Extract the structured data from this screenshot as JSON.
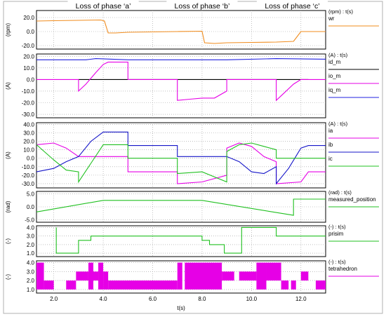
{
  "chart_data": [
    {
      "type": "line",
      "ylabel": "(rpm)",
      "unit_label": "(rpm) : t(s)",
      "ylim": [
        -25,
        30
      ],
      "yticks": [
        20.0,
        0.0,
        -20.0
      ],
      "series": [
        {
          "name": "wr",
          "color": "#f08c1e",
          "points": [
            [
              1.3,
              15
            ],
            [
              2.0,
              15.5
            ],
            [
              3.0,
              16
            ],
            [
              3.9,
              16.5
            ],
            [
              4.05,
              15
            ],
            [
              4.2,
              -2
            ],
            [
              4.5,
              -2
            ],
            [
              5.0,
              -1
            ],
            [
              6.0,
              -0.5
            ],
            [
              7.0,
              0
            ],
            [
              8.0,
              0.5
            ],
            [
              8.1,
              -16
            ],
            [
              8.5,
              -17
            ],
            [
              9.0,
              -16
            ],
            [
              10.0,
              -15.5
            ],
            [
              11.0,
              -15
            ],
            [
              11.7,
              -14
            ],
            [
              11.85,
              -7
            ],
            [
              12.0,
              0
            ],
            [
              13.0,
              0
            ]
          ]
        }
      ]
    },
    {
      "type": "line",
      "ylabel": "(A)",
      "unit_label": "(A) : t(s)",
      "ylim": [
        -33,
        22
      ],
      "yticks": [
        20.0,
        10.0,
        0.0,
        -10.0,
        -20.0,
        -30.0
      ],
      "series": [
        {
          "name": "id_m",
          "color": "#000000",
          "points": [
            [
              3.0,
              0
            ],
            [
              5.0,
              0
            ],
            [
              11.0,
              0
            ],
            [
              12.3,
              0
            ]
          ]
        },
        {
          "name": "io_m",
          "color": "#e600e6",
          "points": [
            [
              1.3,
              0
            ],
            [
              3.0,
              0
            ],
            [
              3.0,
              -10
            ],
            [
              3.3,
              -4
            ],
            [
              3.7,
              6
            ],
            [
              4.0,
              13
            ],
            [
              4.2,
              15
            ],
            [
              5.0,
              15
            ],
            [
              5.0,
              0
            ],
            [
              7.0,
              0
            ],
            [
              7.0,
              -18
            ],
            [
              7.5,
              -17
            ],
            [
              8.0,
              -16
            ],
            [
              8.5,
              -16
            ],
            [
              9.0,
              -10
            ],
            [
              9.0,
              0
            ],
            [
              11.0,
              0
            ],
            [
              11.0,
              -18
            ],
            [
              11.3,
              -12
            ],
            [
              11.7,
              -4
            ],
            [
              12.0,
              0
            ],
            [
              12.3,
              0
            ],
            [
              13.0,
              0
            ]
          ]
        },
        {
          "name": "iq_m",
          "color": "#2020e0",
          "points": [
            [
              1.3,
              17
            ],
            [
              3.0,
              17
            ],
            [
              3.3,
              17
            ],
            [
              3.7,
              18
            ],
            [
              5.0,
              17
            ],
            [
              7.0,
              17
            ],
            [
              8.0,
              17
            ],
            [
              9.0,
              17
            ],
            [
              11.0,
              18
            ],
            [
              13.0,
              17.5
            ]
          ]
        }
      ]
    },
    {
      "type": "line",
      "ylabel": "(A)",
      "unit_label": "(A) : t(s)",
      "ylim": [
        -35,
        42
      ],
      "yticks": [
        40.0,
        30.0,
        20.0,
        10.0,
        0.0,
        -10.0,
        -20.0,
        -30.0
      ],
      "series": [
        {
          "name": "ia",
          "color": "#e600e6",
          "points": [
            [
              1.3,
              16
            ],
            [
              2.0,
              18
            ],
            [
              2.5,
              12
            ],
            [
              3.0,
              2
            ],
            [
              4.0,
              2
            ],
            [
              5.0,
              2
            ],
            [
              5.0,
              -16
            ],
            [
              7.0,
              -16
            ],
            [
              7.0,
              -30
            ],
            [
              8.0,
              -28
            ],
            [
              9.0,
              -20
            ],
            [
              9.0,
              12
            ],
            [
              9.5,
              18
            ],
            [
              10.0,
              14
            ],
            [
              10.5,
              2
            ],
            [
              11.0,
              -4
            ],
            [
              11.0,
              -30
            ],
            [
              12.0,
              -28
            ],
            [
              12.3,
              -16
            ],
            [
              13.0,
              -16
            ]
          ]
        },
        {
          "name": "ib",
          "color": "#1515c8",
          "points": [
            [
              1.3,
              -16
            ],
            [
              2.0,
              -12
            ],
            [
              2.5,
              -4
            ],
            [
              3.0,
              2
            ],
            [
              3.5,
              20
            ],
            [
              4.0,
              31
            ],
            [
              5.0,
              31
            ],
            [
              5.0,
              15
            ],
            [
              7.0,
              15
            ],
            [
              7.0,
              2
            ],
            [
              9.0,
              2
            ],
            [
              9.5,
              -4
            ],
            [
              10.0,
              -16
            ],
            [
              10.5,
              -18
            ],
            [
              11.0,
              -10
            ],
            [
              11.0,
              -30
            ],
            [
              11.5,
              -12
            ],
            [
              12.0,
              12
            ],
            [
              12.3,
              15
            ],
            [
              13.0,
              15
            ]
          ]
        },
        {
          "name": "ic",
          "color": "#20c020",
          "points": [
            [
              1.3,
              16
            ],
            [
              2.0,
              -2
            ],
            [
              2.5,
              -14
            ],
            [
              3.0,
              -16
            ],
            [
              3.0,
              -28
            ],
            [
              3.5,
              -6
            ],
            [
              4.0,
              16
            ],
            [
              5.0,
              16
            ],
            [
              5.0,
              0
            ],
            [
              7.0,
              0
            ],
            [
              7.0,
              -18
            ],
            [
              8.0,
              -16
            ],
            [
              9.0,
              -28
            ],
            [
              9.0,
              8
            ],
            [
              9.5,
              16
            ],
            [
              10.0,
              18
            ],
            [
              10.5,
              14
            ],
            [
              11.0,
              10
            ],
            [
              11.0,
              0
            ],
            [
              12.0,
              0
            ],
            [
              13.0,
              0
            ]
          ]
        }
      ]
    },
    {
      "type": "line",
      "ylabel": "(rad)",
      "unit_label": "(rad) : t(s)",
      "ylim": [
        -6,
        6
      ],
      "yticks": [
        5.0,
        0.0,
        -5.0
      ],
      "series": [
        {
          "name": "measured_position",
          "color": "#20c020",
          "points": [
            [
              1.3,
              -2
            ],
            [
              4.0,
              2.5
            ],
            [
              8.0,
              2.5
            ],
            [
              11.7,
              -3.3
            ],
            [
              11.7,
              3.0
            ],
            [
              13.0,
              3.0
            ]
          ]
        }
      ]
    },
    {
      "type": "line",
      "ylabel": "(-)",
      "unit_label": "(-) : t(s)",
      "ylim": [
        0.6,
        4.2
      ],
      "yticks": [
        4.0,
        3.0,
        2.0,
        1.0
      ],
      "series": [
        {
          "name": "prisim",
          "color": "#20c020",
          "points": [
            [
              2.1,
              4
            ],
            [
              2.1,
              1
            ],
            [
              3.0,
              1
            ],
            [
              3.0,
              2.5
            ],
            [
              3.5,
              2.5
            ],
            [
              3.5,
              3
            ],
            [
              8.0,
              3
            ],
            [
              8.0,
              2.5
            ],
            [
              8.3,
              2.5
            ],
            [
              8.3,
              2
            ],
            [
              8.9,
              2
            ],
            [
              8.9,
              1
            ],
            [
              9.6,
              1
            ],
            [
              9.6,
              4
            ],
            [
              11.0,
              4
            ],
            [
              11.0,
              3
            ],
            [
              13.0,
              3
            ]
          ]
        }
      ]
    },
    {
      "type": "area",
      "ylabel": "(-)",
      "unit_label": "(-) : t(s)",
      "xlabel": "t(s)",
      "ylim": [
        0.6,
        4.2
      ],
      "yticks": [
        4.0,
        3.0,
        2.0,
        1.0
      ],
      "xlim": [
        1.3,
        13.0
      ],
      "xticks": [
        2.0,
        4.0,
        6.0,
        8.0,
        10.0,
        12.0
      ],
      "series": [
        {
          "name": "tetrahedron",
          "color": "#e600e6",
          "blocks": [
            [
              1.3,
              1.6,
              1,
              4
            ],
            [
              1.6,
              2.0,
              1,
              2
            ],
            [
              2.5,
              2.9,
              1,
              2
            ],
            [
              2.9,
              3.4,
              2,
              3
            ],
            [
              3.4,
              3.6,
              1,
              4
            ],
            [
              3.6,
              3.8,
              2,
              3
            ],
            [
              3.8,
              4.0,
              1,
              4
            ],
            [
              4.0,
              4.2,
              1,
              3
            ],
            [
              4.2,
              7.0,
              1,
              2
            ],
            [
              7.0,
              7.2,
              1,
              4
            ],
            [
              7.3,
              8.8,
              1,
              4
            ],
            [
              8.8,
              9.3,
              2,
              3
            ],
            [
              9.5,
              10.2,
              2,
              3
            ],
            [
              10.2,
              10.6,
              1,
              4
            ],
            [
              10.6,
              11.2,
              2,
              4
            ],
            [
              11.2,
              11.5,
              1,
              2
            ],
            [
              11.6,
              11.8,
              1,
              2
            ],
            [
              12.0,
              12.3,
              2,
              3
            ],
            [
              12.6,
              13.0,
              1,
              2
            ]
          ]
        }
      ]
    }
  ],
  "annotations": [
    {
      "text": "Loss of phase ‘a’",
      "x0": 3.0,
      "x1": 5.0
    },
    {
      "text": "Loss of phase ‘b’",
      "x0": 7.0,
      "x1": 9.0
    },
    {
      "text": "Loss of phase ‘c’",
      "x0": 11.0,
      "x1": 12.3
    }
  ]
}
